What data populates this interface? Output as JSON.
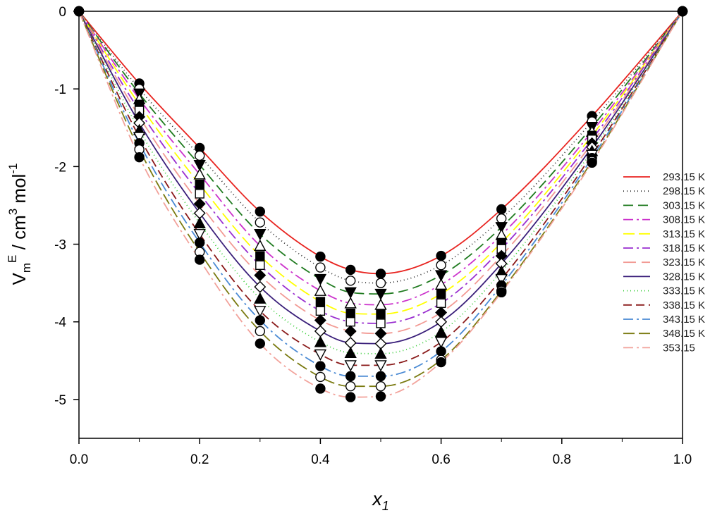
{
  "chart_data": {
    "type": "line",
    "title": "",
    "xlabel": "x",
    "xlabel_sub": "1",
    "ylabel": "V",
    "ylabel_sub": "m",
    "ylabel_sup": "E",
    "ylabel_unit": " / cm",
    "ylabel_unit_sup": "3",
    "ylabel_unit2": " mol",
    "ylabel_unit2_sup": "-1",
    "xlim": [
      0.0,
      1.0
    ],
    "ylim": [
      -5.5,
      0
    ],
    "xticks": [
      "0.0",
      "0.2",
      "0.4",
      "0.6",
      "0.8",
      "1.0"
    ],
    "yticks": [
      "0",
      "-1",
      "-2",
      "-3",
      "-4",
      "-5"
    ],
    "grid": false,
    "legend_position": "right",
    "x": [
      0.0,
      0.1,
      0.2,
      0.3,
      0.4,
      0.45,
      0.5,
      0.6,
      0.7,
      0.85,
      1.0
    ],
    "series": [
      {
        "name": "293.15 K",
        "color": "#e8231f",
        "dash": "",
        "marker": "filled-circle",
        "values": [
          0,
          -0.93,
          -1.76,
          -2.58,
          -3.16,
          -3.33,
          -3.38,
          -3.15,
          -2.55,
          -1.35,
          0
        ]
      },
      {
        "name": "298.15 K",
        "color": "#2a2a2a",
        "dash": "1 4",
        "marker": "open-circle",
        "values": [
          0,
          -1.0,
          -1.86,
          -2.72,
          -3.3,
          -3.47,
          -3.5,
          -3.27,
          -2.67,
          -1.42,
          0
        ]
      },
      {
        "name": "303.15 K",
        "color": "#1f7a1f",
        "dash": "14 7",
        "marker": "filled-triangle-down",
        "values": [
          0,
          -1.06,
          -1.98,
          -2.87,
          -3.45,
          -3.62,
          -3.64,
          -3.4,
          -2.78,
          -1.49,
          0
        ]
      },
      {
        "name": "308.15 K",
        "color": "#cc33cc",
        "dash": "14 5 3 5",
        "marker": "open-triangle-up",
        "values": [
          0,
          -1.13,
          -2.1,
          -3.02,
          -3.6,
          -3.76,
          -3.78,
          -3.52,
          -2.88,
          -1.55,
          0
        ]
      },
      {
        "name": "313.15 K",
        "color": "#ffff00",
        "dash": "16 6",
        "marker": "filled-square",
        "values": [
          0,
          -1.2,
          -2.23,
          -3.15,
          -3.74,
          -3.89,
          -3.9,
          -3.64,
          -2.98,
          -1.6,
          0
        ]
      },
      {
        "name": "318.15 K",
        "color": "#9a2fd0",
        "dash": "14 5 3 5",
        "marker": "open-square",
        "values": [
          0,
          -1.28,
          -2.35,
          -3.27,
          -3.86,
          -4.0,
          -4.02,
          -3.76,
          -3.06,
          -1.65,
          0
        ]
      },
      {
        "name": "323.15 K",
        "color": "#f29a94",
        "dash": "18 8",
        "marker": "filled-diamond",
        "values": [
          0,
          -1.36,
          -2.48,
          -3.4,
          -3.98,
          -4.12,
          -4.15,
          -3.88,
          -3.15,
          -1.7,
          0
        ]
      },
      {
        "name": "328.15 K",
        "color": "#3a1f7a",
        "dash": "",
        "marker": "open-diamond",
        "values": [
          0,
          -1.44,
          -2.6,
          -3.55,
          -4.12,
          -4.27,
          -4.28,
          -4.0,
          -3.25,
          -1.75,
          0
        ]
      },
      {
        "name": "333.15 K",
        "color": "#33cc33",
        "dash": "1 4",
        "marker": "filled-triangle-up",
        "values": [
          0,
          -1.53,
          -2.73,
          -3.7,
          -4.26,
          -4.4,
          -4.41,
          -4.13,
          -3.35,
          -1.8,
          0
        ]
      },
      {
        "name": "338.15 K",
        "color": "#8a1a1a",
        "dash": "12 6",
        "marker": "open-triangle-down",
        "values": [
          0,
          -1.62,
          -2.87,
          -3.86,
          -4.42,
          -4.56,
          -4.56,
          -4.26,
          -3.45,
          -1.85,
          0
        ]
      },
      {
        "name": "343.15 K",
        "color": "#4a8ad4",
        "dash": "14 5 3 5",
        "marker": "filled-circle",
        "values": [
          0,
          -1.7,
          -2.98,
          -3.98,
          -4.57,
          -4.7,
          -4.7,
          -4.38,
          -3.53,
          -1.89,
          0
        ]
      },
      {
        "name": "348.15 K",
        "color": "#7a7a10",
        "dash": "16 6",
        "marker": "open-circle",
        "values": [
          0,
          -1.78,
          -3.1,
          -4.12,
          -4.71,
          -4.83,
          -4.83,
          -4.49,
          -3.6,
          -1.93,
          0
        ]
      },
      {
        "name": "353.15",
        "color": "#f2a29b",
        "dash": "14 5 3 5",
        "marker": "filled-circle",
        "values": [
          0,
          -1.88,
          -3.2,
          -4.28,
          -4.86,
          -4.97,
          -4.96,
          -4.52,
          -3.62,
          -1.95,
          0
        ]
      }
    ]
  }
}
